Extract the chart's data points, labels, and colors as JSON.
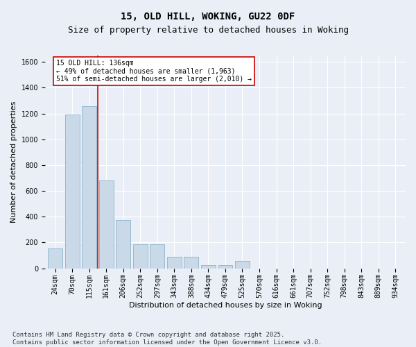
{
  "title": "15, OLD HILL, WOKING, GU22 0DF",
  "subtitle": "Size of property relative to detached houses in Woking",
  "xlabel": "Distribution of detached houses by size in Woking",
  "ylabel": "Number of detached properties",
  "categories": [
    "24sqm",
    "70sqm",
    "115sqm",
    "161sqm",
    "206sqm",
    "252sqm",
    "297sqm",
    "343sqm",
    "388sqm",
    "434sqm",
    "479sqm",
    "525sqm",
    "570sqm",
    "616sqm",
    "661sqm",
    "707sqm",
    "752sqm",
    "798sqm",
    "843sqm",
    "889sqm",
    "934sqm"
  ],
  "values": [
    155,
    1195,
    1255,
    680,
    375,
    185,
    185,
    90,
    90,
    25,
    25,
    55,
    0,
    0,
    0,
    0,
    0,
    0,
    0,
    0,
    0
  ],
  "bar_color": "#c9d9e8",
  "bar_edge_color": "#8ab4cc",
  "vline_color": "#cc0000",
  "annotation_text": "15 OLD HILL: 136sqm\n← 49% of detached houses are smaller (1,963)\n51% of semi-detached houses are larger (2,010) →",
  "annotation_box_color": "#ffffff",
  "annotation_box_edge": "#cc0000",
  "ylim": [
    0,
    1650
  ],
  "yticks": [
    0,
    200,
    400,
    600,
    800,
    1000,
    1200,
    1400,
    1600
  ],
  "bg_color": "#eaeff7",
  "plot_bg_color": "#eaeff7",
  "footer": "Contains HM Land Registry data © Crown copyright and database right 2025.\nContains public sector information licensed under the Open Government Licence v3.0.",
  "title_fontsize": 10,
  "subtitle_fontsize": 9,
  "axis_label_fontsize": 8,
  "tick_fontsize": 7,
  "footer_fontsize": 6.5
}
